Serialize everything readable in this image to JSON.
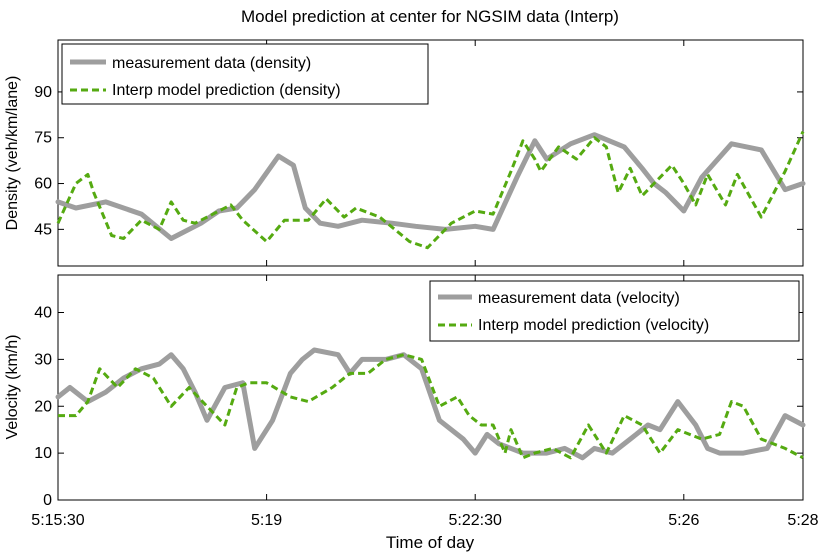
{
  "title": "Model prediction at center for NGSIM data (Interp)",
  "xlabel": "Time of day",
  "x_ticks": [
    "5:15:30",
    "5:19",
    "5:22:30",
    "5:26",
    "5:28"
  ],
  "colors": {
    "measurement": "#9e9e9e",
    "prediction": "#55aa11"
  },
  "chart_data": [
    {
      "type": "line",
      "ylabel": "Density (veh/km/lane)",
      "ylim": [
        33,
        107
      ],
      "yticks": [
        45,
        60,
        75,
        90
      ],
      "xlim_minutes": [
        0,
        12.5
      ],
      "legend_position": "top-left",
      "grid": false,
      "series": [
        {
          "name": "measurement data (density)",
          "style": "solid-thick",
          "x": [
            0,
            0.3,
            0.8,
            1.4,
            1.9,
            2.4,
            2.7,
            3.0,
            3.3,
            3.7,
            3.95,
            4.15,
            4.4,
            4.7,
            5.1,
            5.6,
            6.0,
            6.5,
            7.0,
            7.3,
            7.7,
            8.0,
            8.2,
            8.6,
            9.0,
            9.5,
            9.8,
            10.0,
            10.2,
            10.5,
            10.8,
            11.3,
            11.8,
            12.2,
            12.5
          ],
          "y": [
            54,
            52,
            54,
            50,
            42,
            47,
            51,
            52,
            58,
            69,
            66,
            52,
            47,
            46,
            48,
            47,
            46,
            45,
            46,
            45,
            62,
            74,
            68,
            73,
            76,
            72,
            65,
            60,
            57,
            51,
            62,
            73,
            71,
            58,
            60
          ]
        },
        {
          "name": "Interp model prediction (density)",
          "style": "dashed",
          "x": [
            0,
            0.3,
            0.5,
            0.6,
            0.9,
            1.1,
            1.4,
            1.7,
            1.9,
            2.1,
            2.3,
            2.6,
            2.9,
            3.1,
            3.5,
            3.8,
            4.2,
            4.5,
            4.8,
            5.0,
            5.4,
            5.9,
            6.2,
            6.6,
            7.0,
            7.3,
            7.6,
            7.8,
            8.0,
            8.1,
            8.4,
            8.7,
            9.0,
            9.2,
            9.4,
            9.6,
            9.8,
            10.0,
            10.3,
            10.5,
            10.7,
            10.9,
            11.2,
            11.4,
            11.8,
            12.2,
            12.5
          ],
          "y": [
            47,
            60,
            63,
            57,
            43,
            42,
            48,
            45,
            54,
            48,
            47,
            50,
            53,
            48,
            41,
            48,
            48,
            55,
            49,
            52,
            49,
            41,
            39,
            47,
            51,
            50,
            64,
            74,
            68,
            64,
            72,
            68,
            75,
            72,
            57,
            65,
            56,
            60,
            66,
            60,
            53,
            63,
            53,
            63,
            49,
            64,
            77
          ]
        }
      ]
    },
    {
      "type": "line",
      "ylabel": "Velocity (km/h)",
      "ylim": [
        0,
        48
      ],
      "yticks": [
        0,
        10,
        20,
        30,
        40
      ],
      "xlim_minutes": [
        0,
        12.5
      ],
      "legend_position": "top-right",
      "grid": false,
      "series": [
        {
          "name": "measurement data (velocity)",
          "style": "solid-thick",
          "x": [
            0,
            0.2,
            0.5,
            0.8,
            1.1,
            1.4,
            1.7,
            1.9,
            2.1,
            2.3,
            2.5,
            2.8,
            3.1,
            3.3,
            3.6,
            3.9,
            4.1,
            4.3,
            4.7,
            4.9,
            5.1,
            5.3,
            5.5,
            5.8,
            6.1,
            6.4,
            6.8,
            7.0,
            7.2,
            7.4,
            7.6,
            7.8,
            8.0,
            8.2,
            8.5,
            8.8,
            9.0,
            9.3,
            9.6,
            9.9,
            10.1,
            10.4,
            10.7,
            10.9,
            11.1,
            11.3,
            11.5,
            11.9,
            12.2,
            12.5
          ],
          "y": [
            22,
            24,
            21,
            23,
            26,
            28,
            29,
            31,
            28,
            23,
            17,
            24,
            25,
            11,
            17,
            27,
            30,
            32,
            31,
            27,
            30,
            30,
            30,
            31,
            28,
            17,
            13,
            10,
            14,
            12,
            11,
            10,
            10,
            10,
            11,
            9,
            11,
            10,
            13,
            16,
            15,
            21,
            16,
            11,
            10,
            10,
            10,
            11,
            18,
            16
          ]
        },
        {
          "name": "Interp model prediction (velocity)",
          "style": "dashed",
          "x": [
            0,
            0.3,
            0.5,
            0.7,
            1.0,
            1.3,
            1.6,
            1.9,
            2.2,
            2.5,
            2.8,
            3.0,
            3.2,
            3.5,
            3.9,
            4.2,
            4.6,
            4.9,
            5.2,
            5.5,
            5.8,
            6.1,
            6.4,
            6.7,
            6.9,
            7.1,
            7.3,
            7.5,
            7.6,
            7.8,
            8.0,
            8.3,
            8.6,
            8.9,
            9.2,
            9.5,
            9.8,
            10.1,
            10.4,
            10.8,
            11.1,
            11.3,
            11.5,
            11.8,
            12.2,
            12.5
          ],
          "y": [
            18,
            18,
            21,
            28,
            24,
            28,
            26,
            20,
            24,
            20,
            16,
            24,
            25,
            25,
            22,
            21,
            24,
            27,
            27,
            30,
            31,
            30,
            20,
            22,
            18,
            16,
            16,
            10,
            15,
            9,
            10,
            11,
            9,
            16,
            10,
            18,
            16,
            10,
            15,
            13,
            14,
            21,
            20,
            13,
            11,
            9
          ]
        }
      ]
    }
  ]
}
